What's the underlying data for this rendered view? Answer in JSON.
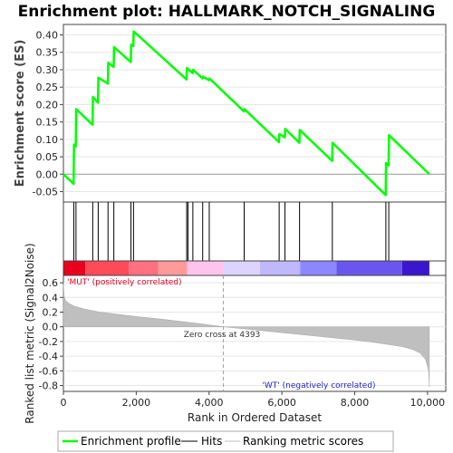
{
  "chart_data": [
    {
      "type": "line",
      "panel": "enrichment-profile",
      "title": "Enrichment plot: HALLMARK_NOTCH_SIGNALING",
      "ylabel": "Enrichment score (ES)",
      "xlim": [
        0,
        10500
      ],
      "ylim": [
        -0.08,
        0.43
      ],
      "y_ticks": [
        -0.05,
        0.0,
        0.05,
        0.1,
        0.15,
        0.2,
        0.25,
        0.3,
        0.35,
        0.4
      ],
      "y_tick_labels": [
        "-0.05",
        "0.00",
        "0.05",
        "0.10",
        "0.15",
        "0.20",
        "0.25",
        "0.30",
        "0.35",
        "0.40"
      ],
      "line_color": "#00ff00",
      "series": [
        {
          "name": "Enrichment profile",
          "x": [
            0,
            280,
            290,
            340,
            350,
            800,
            810,
            950,
            960,
            1220,
            1230,
            1380,
            1390,
            1850,
            1860,
            1920,
            1930,
            3380,
            3390,
            3550,
            3560,
            3820,
            3830,
            4000,
            4010,
            4960,
            4970,
            5920,
            5930,
            6080,
            6090,
            6480,
            6490,
            7380,
            7390,
            8850,
            8860,
            8930,
            8940,
            10050
          ],
          "y": [
            0.0,
            -0.028,
            0.085,
            0.08,
            0.187,
            0.142,
            0.222,
            0.205,
            0.277,
            0.26,
            0.32,
            0.308,
            0.365,
            0.322,
            0.372,
            0.368,
            0.41,
            0.272,
            0.305,
            0.29,
            0.3,
            0.275,
            0.28,
            0.27,
            0.275,
            0.18,
            0.187,
            0.092,
            0.115,
            0.106,
            0.13,
            0.09,
            0.127,
            0.038,
            0.09,
            -0.06,
            0.032,
            0.025,
            0.112,
            0.0
          ]
        }
      ],
      "grid": true
    },
    {
      "type": "scatter",
      "panel": "hits",
      "series": [
        {
          "name": "Hits",
          "x": [
            285,
            345,
            805,
            955,
            1225,
            1385,
            1855,
            1925,
            3385,
            3420,
            3555,
            3825,
            4005,
            4965,
            5925,
            6085,
            6485,
            7385,
            8855,
            8935
          ]
        }
      ],
      "color_bar": {
        "xlim": [
          0,
          10500
        ],
        "segments": [
          {
            "from": 0,
            "to": 600,
            "color": "#e8001c"
          },
          {
            "from": 600,
            "to": 1800,
            "color": "#ff4a5a"
          },
          {
            "from": 1800,
            "to": 2600,
            "color": "#ff7080"
          },
          {
            "from": 2600,
            "to": 3400,
            "color": "#ff9a9a"
          },
          {
            "from": 3400,
            "to": 4393,
            "color": "#ffc4ee"
          },
          {
            "from": 4393,
            "to": 5400,
            "color": "#dcd4ff"
          },
          {
            "from": 5400,
            "to": 6500,
            "color": "#c0b8ff"
          },
          {
            "from": 6500,
            "to": 7500,
            "color": "#8c86ff"
          },
          {
            "from": 7500,
            "to": 9300,
            "color": "#6a56ee"
          },
          {
            "from": 9300,
            "to": 10050,
            "color": "#3a16cc"
          }
        ]
      }
    },
    {
      "type": "area",
      "panel": "ranked-metric",
      "xlabel": "Rank in Ordered Dataset",
      "ylabel": "Ranked list metric (Signal2Noise)",
      "xlim": [
        0,
        10500
      ],
      "ylim": [
        -0.88,
        0.7
      ],
      "x_ticks": [
        0,
        2000,
        4000,
        6000,
        8000,
        10000
      ],
      "x_tick_labels": [
        "0",
        "2,000",
        "4,000",
        "6,000",
        "8,000",
        "10,000"
      ],
      "y_ticks": [
        -0.8,
        -0.6,
        -0.4,
        -0.2,
        0.0,
        0.2,
        0.4,
        0.6
      ],
      "y_tick_labels": [
        "-0.8",
        "-0.6",
        "-0.4",
        "-0.2",
        "0.0",
        "0.2",
        "0.4",
        "0.6"
      ],
      "zero_cross": 4393,
      "series": [
        {
          "name": "Ranking metric scores",
          "x": [
            0,
            20,
            60,
            150,
            300,
            600,
            1000,
            1500,
            2000,
            2600,
            3200,
            3800,
            4393,
            5000,
            5600,
            6200,
            6800,
            7400,
            8000,
            8500,
            8900,
            9300,
            9600,
            9800,
            9950,
            10030,
            10050
          ],
          "y": [
            0.58,
            0.42,
            0.36,
            0.32,
            0.28,
            0.24,
            0.2,
            0.17,
            0.14,
            0.11,
            0.075,
            0.04,
            0.0,
            -0.03,
            -0.06,
            -0.09,
            -0.12,
            -0.15,
            -0.18,
            -0.21,
            -0.24,
            -0.27,
            -0.31,
            -0.36,
            -0.45,
            -0.6,
            -0.82
          ]
        }
      ],
      "annotations": [
        {
          "text": "'MUT' (positively correlated)",
          "color": "#e8001c"
        },
        {
          "text": "Zero cross at 4393",
          "color": "#333333"
        },
        {
          "text": "'WT' (negatively correlated)",
          "color": "#2222cc"
        }
      ]
    }
  ],
  "legend": {
    "items": [
      {
        "label": "Enrichment profile",
        "color": "#00ff00"
      },
      {
        "label": "Hits",
        "color": "#000000"
      },
      {
        "label": "Ranking metric scores",
        "color": "#bfbfbf"
      }
    ]
  }
}
